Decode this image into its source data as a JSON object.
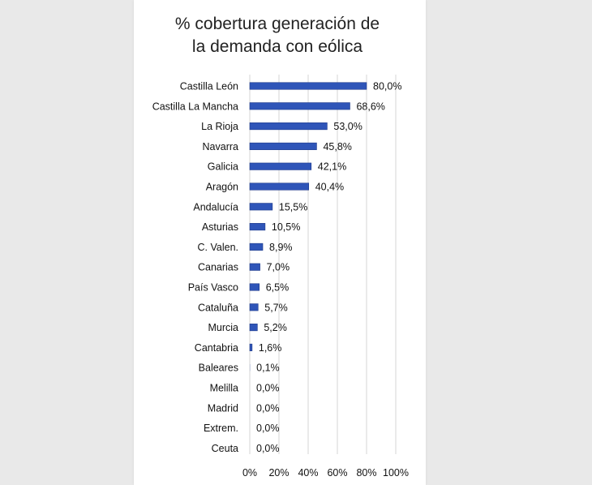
{
  "chart_data": {
    "type": "bar",
    "orientation": "horizontal",
    "title_lines": [
      "% cobertura generación de",
      "la demanda con eólica"
    ],
    "categories": [
      "Castilla León",
      "Castilla La Mancha",
      "La Rioja",
      "Navarra",
      "Galicia",
      "Aragón",
      "Andalucía",
      "Asturias",
      "C. Valen.",
      "Canarias",
      "País Vasco",
      "Cataluña",
      "Murcia",
      "Cantabria",
      "Baleares",
      "Melilla",
      "Madrid",
      "Extrem.",
      "Ceuta"
    ],
    "values": [
      80.0,
      68.6,
      53.0,
      45.8,
      42.1,
      40.4,
      15.5,
      10.5,
      8.9,
      7.0,
      6.5,
      5.7,
      5.2,
      1.6,
      0.1,
      0.0,
      0.0,
      0.0,
      0.0
    ],
    "value_labels": [
      "80,0%",
      "68,6%",
      "53,0%",
      "45,8%",
      "42,1%",
      "40,4%",
      "15,5%",
      "10,5%",
      "8,9%",
      "7,0%",
      "6,5%",
      "5,7%",
      "5,2%",
      "1,6%",
      "0,1%",
      "0,0%",
      "0,0%",
      "0,0%",
      "0,0%"
    ],
    "x_ticks": [
      0,
      20,
      40,
      60,
      80,
      100
    ],
    "x_tick_labels": [
      "0%",
      "20%",
      "40%",
      "60%",
      "80%",
      "100%"
    ],
    "xlim": [
      0,
      100
    ],
    "grid": true,
    "bar_color": "#2f55b8",
    "bar_edge_color": "#1e3a8a",
    "grid_color": "#d4d4d4",
    "xlabel": "",
    "ylabel": ""
  }
}
